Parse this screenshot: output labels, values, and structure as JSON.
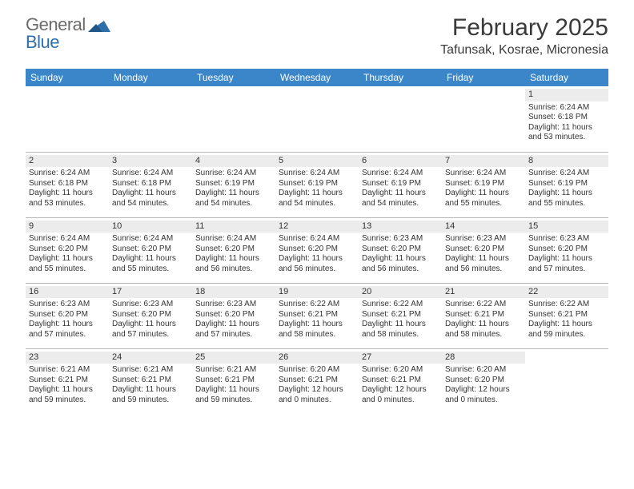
{
  "brand": {
    "word1": "General",
    "word2": "Blue",
    "mark_color": "#2f6fa8",
    "gray": "#6b6b6b"
  },
  "header": {
    "title": "February 2025",
    "location": "Tafunsak, Kosrae, Micronesia"
  },
  "theme": {
    "header_bg": "#3a86c8",
    "header_fg": "#ffffff",
    "daynum_bg": "#ececec",
    "border": "#b8b8b8",
    "text": "#333333"
  },
  "weekdays": [
    "Sunday",
    "Monday",
    "Tuesday",
    "Wednesday",
    "Thursday",
    "Friday",
    "Saturday"
  ],
  "weeks": [
    [
      null,
      null,
      null,
      null,
      null,
      null,
      {
        "n": "1",
        "sr": "Sunrise: 6:24 AM",
        "ss": "Sunset: 6:18 PM",
        "d1": "Daylight: 11 hours",
        "d2": "and 53 minutes."
      }
    ],
    [
      {
        "n": "2",
        "sr": "Sunrise: 6:24 AM",
        "ss": "Sunset: 6:18 PM",
        "d1": "Daylight: 11 hours",
        "d2": "and 53 minutes."
      },
      {
        "n": "3",
        "sr": "Sunrise: 6:24 AM",
        "ss": "Sunset: 6:18 PM",
        "d1": "Daylight: 11 hours",
        "d2": "and 54 minutes."
      },
      {
        "n": "4",
        "sr": "Sunrise: 6:24 AM",
        "ss": "Sunset: 6:19 PM",
        "d1": "Daylight: 11 hours",
        "d2": "and 54 minutes."
      },
      {
        "n": "5",
        "sr": "Sunrise: 6:24 AM",
        "ss": "Sunset: 6:19 PM",
        "d1": "Daylight: 11 hours",
        "d2": "and 54 minutes."
      },
      {
        "n": "6",
        "sr": "Sunrise: 6:24 AM",
        "ss": "Sunset: 6:19 PM",
        "d1": "Daylight: 11 hours",
        "d2": "and 54 minutes."
      },
      {
        "n": "7",
        "sr": "Sunrise: 6:24 AM",
        "ss": "Sunset: 6:19 PM",
        "d1": "Daylight: 11 hours",
        "d2": "and 55 minutes."
      },
      {
        "n": "8",
        "sr": "Sunrise: 6:24 AM",
        "ss": "Sunset: 6:19 PM",
        "d1": "Daylight: 11 hours",
        "d2": "and 55 minutes."
      }
    ],
    [
      {
        "n": "9",
        "sr": "Sunrise: 6:24 AM",
        "ss": "Sunset: 6:20 PM",
        "d1": "Daylight: 11 hours",
        "d2": "and 55 minutes."
      },
      {
        "n": "10",
        "sr": "Sunrise: 6:24 AM",
        "ss": "Sunset: 6:20 PM",
        "d1": "Daylight: 11 hours",
        "d2": "and 55 minutes."
      },
      {
        "n": "11",
        "sr": "Sunrise: 6:24 AM",
        "ss": "Sunset: 6:20 PM",
        "d1": "Daylight: 11 hours",
        "d2": "and 56 minutes."
      },
      {
        "n": "12",
        "sr": "Sunrise: 6:24 AM",
        "ss": "Sunset: 6:20 PM",
        "d1": "Daylight: 11 hours",
        "d2": "and 56 minutes."
      },
      {
        "n": "13",
        "sr": "Sunrise: 6:23 AM",
        "ss": "Sunset: 6:20 PM",
        "d1": "Daylight: 11 hours",
        "d2": "and 56 minutes."
      },
      {
        "n": "14",
        "sr": "Sunrise: 6:23 AM",
        "ss": "Sunset: 6:20 PM",
        "d1": "Daylight: 11 hours",
        "d2": "and 56 minutes."
      },
      {
        "n": "15",
        "sr": "Sunrise: 6:23 AM",
        "ss": "Sunset: 6:20 PM",
        "d1": "Daylight: 11 hours",
        "d2": "and 57 minutes."
      }
    ],
    [
      {
        "n": "16",
        "sr": "Sunrise: 6:23 AM",
        "ss": "Sunset: 6:20 PM",
        "d1": "Daylight: 11 hours",
        "d2": "and 57 minutes."
      },
      {
        "n": "17",
        "sr": "Sunrise: 6:23 AM",
        "ss": "Sunset: 6:20 PM",
        "d1": "Daylight: 11 hours",
        "d2": "and 57 minutes."
      },
      {
        "n": "18",
        "sr": "Sunrise: 6:23 AM",
        "ss": "Sunset: 6:20 PM",
        "d1": "Daylight: 11 hours",
        "d2": "and 57 minutes."
      },
      {
        "n": "19",
        "sr": "Sunrise: 6:22 AM",
        "ss": "Sunset: 6:21 PM",
        "d1": "Daylight: 11 hours",
        "d2": "and 58 minutes."
      },
      {
        "n": "20",
        "sr": "Sunrise: 6:22 AM",
        "ss": "Sunset: 6:21 PM",
        "d1": "Daylight: 11 hours",
        "d2": "and 58 minutes."
      },
      {
        "n": "21",
        "sr": "Sunrise: 6:22 AM",
        "ss": "Sunset: 6:21 PM",
        "d1": "Daylight: 11 hours",
        "d2": "and 58 minutes."
      },
      {
        "n": "22",
        "sr": "Sunrise: 6:22 AM",
        "ss": "Sunset: 6:21 PM",
        "d1": "Daylight: 11 hours",
        "d2": "and 59 minutes."
      }
    ],
    [
      {
        "n": "23",
        "sr": "Sunrise: 6:21 AM",
        "ss": "Sunset: 6:21 PM",
        "d1": "Daylight: 11 hours",
        "d2": "and 59 minutes."
      },
      {
        "n": "24",
        "sr": "Sunrise: 6:21 AM",
        "ss": "Sunset: 6:21 PM",
        "d1": "Daylight: 11 hours",
        "d2": "and 59 minutes."
      },
      {
        "n": "25",
        "sr": "Sunrise: 6:21 AM",
        "ss": "Sunset: 6:21 PM",
        "d1": "Daylight: 11 hours",
        "d2": "and 59 minutes."
      },
      {
        "n": "26",
        "sr": "Sunrise: 6:20 AM",
        "ss": "Sunset: 6:21 PM",
        "d1": "Daylight: 12 hours",
        "d2": "and 0 minutes."
      },
      {
        "n": "27",
        "sr": "Sunrise: 6:20 AM",
        "ss": "Sunset: 6:21 PM",
        "d1": "Daylight: 12 hours",
        "d2": "and 0 minutes."
      },
      {
        "n": "28",
        "sr": "Sunrise: 6:20 AM",
        "ss": "Sunset: 6:20 PM",
        "d1": "Daylight: 12 hours",
        "d2": "and 0 minutes."
      },
      null
    ]
  ]
}
